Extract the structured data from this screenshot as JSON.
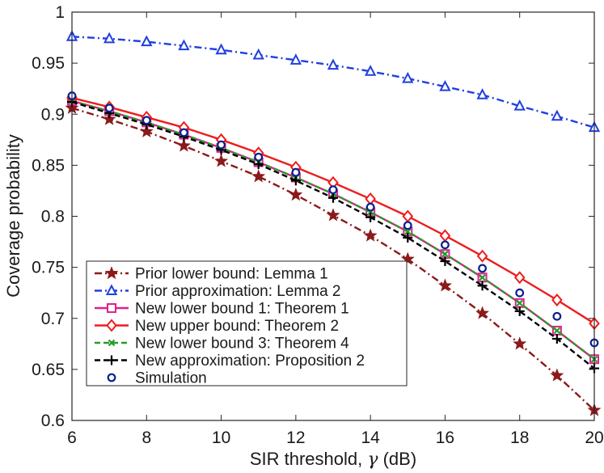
{
  "chart_data": {
    "type": "line",
    "title": "",
    "xlabel": "SIR threshold, γ (dB)",
    "xlabel_prefix": "SIR threshold, ",
    "xlabel_symbol": "γ",
    "xlabel_suffix": " (dB)",
    "ylabel": "Coverage probability",
    "xlim": [
      6,
      20
    ],
    "ylim": [
      0.6,
      1.0
    ],
    "xticks": [
      6,
      8,
      10,
      12,
      14,
      16,
      18,
      20
    ],
    "yticks": [
      0.6,
      0.65,
      0.7,
      0.75,
      0.8,
      0.85,
      0.9,
      0.95,
      1.0
    ],
    "ytick_labels": [
      "0.6",
      "0.65",
      "0.7",
      "0.75",
      "0.8",
      "0.85",
      "0.9",
      "0.95",
      "1"
    ],
    "legend_position": "bottom-left",
    "x": [
      6,
      7,
      8,
      9,
      10,
      11,
      12,
      13,
      14,
      15,
      16,
      17,
      18,
      19,
      20
    ],
    "series": [
      {
        "name": "Prior lower bound: Lemma 1",
        "color": "#8b1a1a",
        "line": "dashdot",
        "marker": "star",
        "values": [
          0.906,
          0.895,
          0.883,
          0.869,
          0.854,
          0.839,
          0.821,
          0.801,
          0.781,
          0.758,
          0.732,
          0.705,
          0.675,
          0.644,
          0.61
        ]
      },
      {
        "name": "Prior approximation: Lemma 2",
        "color": "#1f3fe0",
        "line": "dashdot",
        "marker": "triangle",
        "values": [
          0.976,
          0.974,
          0.971,
          0.967,
          0.963,
          0.958,
          0.953,
          0.948,
          0.942,
          0.935,
          0.927,
          0.919,
          0.908,
          0.898,
          0.887
        ]
      },
      {
        "name": "New lower bound 1: Theorem 1",
        "color": "#e0208f",
        "line": "solid",
        "marker": "square",
        "values": [
          0.913,
          0.903,
          0.892,
          0.88,
          0.867,
          0.853,
          0.838,
          0.822,
          0.804,
          0.785,
          0.763,
          0.74,
          0.715,
          0.688,
          0.66
        ]
      },
      {
        "name": "New upper bound: Theorem 2",
        "color": "#ee1c1c",
        "line": "solid",
        "marker": "diamond",
        "values": [
          0.916,
          0.907,
          0.897,
          0.887,
          0.875,
          0.862,
          0.848,
          0.833,
          0.817,
          0.8,
          0.781,
          0.761,
          0.74,
          0.718,
          0.695
        ]
      },
      {
        "name": "New lower bound 3: Theorem 4",
        "color": "#2a9a2a",
        "line": "dashed",
        "marker": "x",
        "values": [
          0.913,
          0.903,
          0.892,
          0.88,
          0.867,
          0.853,
          0.838,
          0.822,
          0.804,
          0.785,
          0.763,
          0.74,
          0.715,
          0.688,
          0.66
        ]
      },
      {
        "name": "New approximation: Proposition 2",
        "color": "#000000",
        "line": "dashed",
        "marker": "plus",
        "values": [
          0.912,
          0.901,
          0.89,
          0.878,
          0.865,
          0.851,
          0.835,
          0.818,
          0.799,
          0.779,
          0.756,
          0.732,
          0.707,
          0.68,
          0.651
        ]
      },
      {
        "name": "Simulation",
        "color": "#0a1f8f",
        "line": "none",
        "marker": "circle",
        "values": [
          0.918,
          0.906,
          0.894,
          0.882,
          0.87,
          0.858,
          0.843,
          0.826,
          0.809,
          0.791,
          0.772,
          0.749,
          0.725,
          0.702,
          0.676
        ]
      }
    ]
  }
}
